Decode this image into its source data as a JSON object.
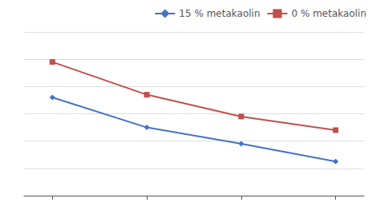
{
  "chart_data": {
    "type": "line",
    "x": [
      1,
      2,
      3,
      4
    ],
    "series": [
      {
        "name": "15 % metakaolin",
        "color": "#4472C4",
        "marker": "diamond",
        "values": [
          7.2,
          5.0,
          3.8,
          2.5
        ]
      },
      {
        "name": "0 % metakaolin",
        "color": "#C0504D",
        "marker": "square",
        "values": [
          9.8,
          7.4,
          5.8,
          4.8
        ]
      }
    ],
    "xlim": [
      0.7,
      4.3
    ],
    "xticks": [
      1,
      2,
      3,
      4
    ],
    "ylim": [
      0,
      12
    ],
    "yticks": [
      0,
      2,
      4,
      6,
      8,
      10,
      12
    ],
    "grid": true,
    "legend": "upper right",
    "tick_labels": false
  }
}
